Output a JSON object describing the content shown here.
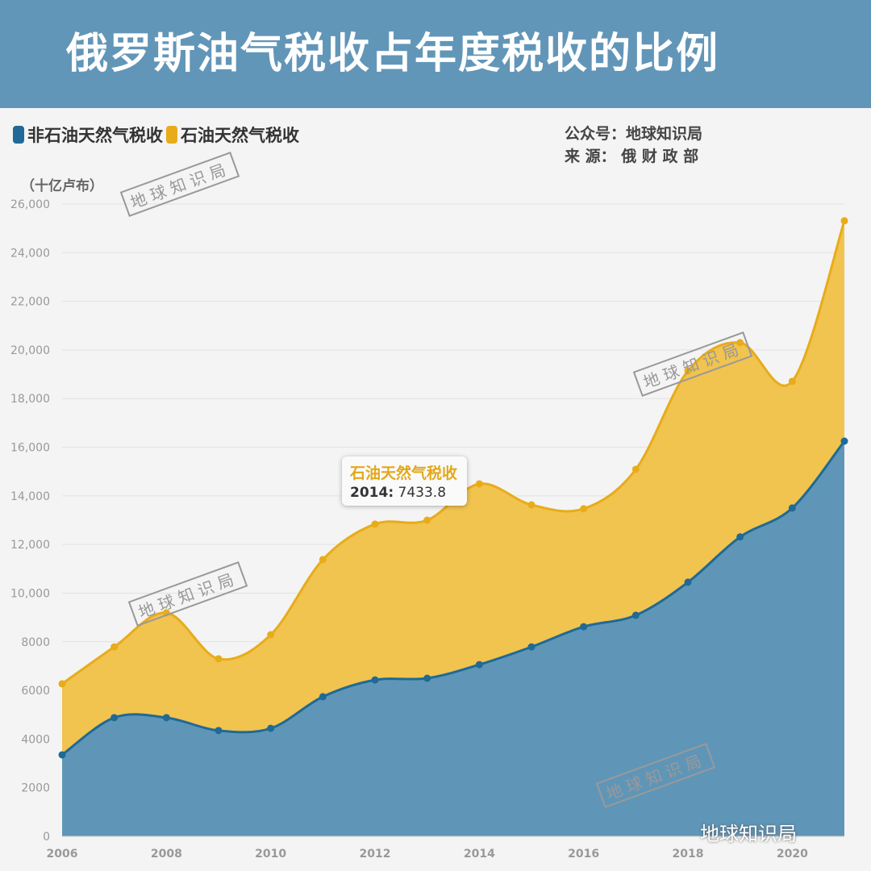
{
  "header": {
    "title": "俄罗斯油气税收占年度税收的比例"
  },
  "credit": {
    "line1": "公众号：地球知识局",
    "line2": "来 源： 俄 财 政 部"
  },
  "watermark": "地球知识局",
  "brand": "地球知识局",
  "colors": {
    "non_oil": "#1f6a96",
    "non_oil_fill": "#5f96b8",
    "oil": "#e8ac1a",
    "oil_fill": "#f1c34f",
    "header": "#6296b8"
  },
  "tooltip": {
    "series": "石油天然气税收",
    "year": "2014:",
    "value": "7433.8"
  },
  "chart_data": {
    "type": "area",
    "stacked": true,
    "ylabel": "（十亿卢布）",
    "ylim": [
      0,
      26000
    ],
    "yticks": [
      "0",
      "2000",
      "4000",
      "6000",
      "8000",
      "10,000",
      "12,000",
      "14,000",
      "16,000",
      "18,000",
      "20,000",
      "22,000",
      "24,000",
      "26,000"
    ],
    "xticks": [
      "2006",
      "2008",
      "2010",
      "2012",
      "2014",
      "2016",
      "2018",
      "2020"
    ],
    "grid": true,
    "legend_placement": "top-left",
    "x": [
      2006,
      2007,
      2008,
      2009,
      2010,
      2011,
      2012,
      2013,
      2014,
      2015,
      2016,
      2017,
      2018,
      2019,
      2020,
      2021
    ],
    "series": [
      {
        "name": "非石油天然气税收",
        "values": [
          3350,
          4880,
          4880,
          4350,
          4440,
          5740,
          6430,
          6500,
          7060,
          7790,
          8620,
          9090,
          10450,
          12310,
          13500,
          16250
        ]
      },
      {
        "name": "石油天然气税收",
        "values": [
          2920,
          2910,
          4310,
          2950,
          3850,
          5640,
          6410,
          6500,
          7433.8,
          5840,
          4850,
          6000,
          8690,
          7990,
          5210,
          9060
        ]
      }
    ]
  }
}
